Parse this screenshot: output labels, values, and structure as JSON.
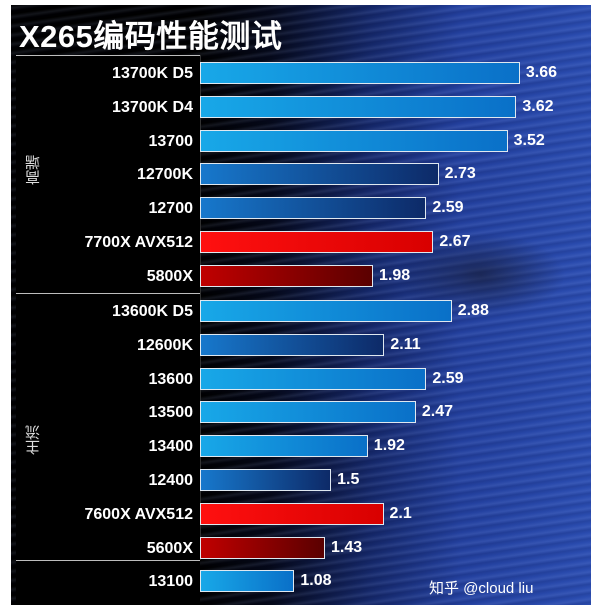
{
  "chart_data": {
    "type": "bar",
    "orientation": "horizontal",
    "title": "X265编码性能测试",
    "xlabel": "",
    "ylabel": "",
    "groups": [
      {
        "name": "高端",
        "categories": [
          "13700K D5",
          "13700K D4",
          "13700",
          "12700K",
          "12700",
          "7700X AVX512",
          "5800X"
        ],
        "values": [
          3.66,
          3.62,
          3.52,
          2.73,
          2.59,
          2.67,
          1.98
        ]
      },
      {
        "name": "主流",
        "categories": [
          "13600K D5",
          "12600K",
          "13600",
          "13500",
          "13400",
          "12400",
          "7600X AVX512",
          "5600X",
          "13100"
        ],
        "values": [
          2.88,
          2.11,
          2.59,
          2.47,
          1.92,
          1.5,
          2.1,
          1.43,
          1.08
        ]
      }
    ],
    "categories": [
      "13700K D5",
      "13700K D4",
      "13700",
      "12700K",
      "12700",
      "7700X AVX512",
      "5800X",
      "13600K D5",
      "12600K",
      "13600",
      "13500",
      "13400",
      "12400",
      "7600X AVX512",
      "5600X",
      "13100"
    ],
    "values": [
      3.66,
      3.62,
      3.52,
      2.73,
      2.59,
      2.67,
      1.98,
      2.88,
      2.11,
      2.59,
      2.47,
      1.92,
      1.5,
      2.1,
      1.43,
      1.08
    ],
    "value_labels": [
      "3.66",
      "3.62",
      "3.52",
      "2.73",
      "2.59",
      "2.67",
      "1.98",
      "2.88",
      "2.11",
      "2.59",
      "2.47",
      "1.92",
      "1.5",
      "2.1",
      "1.43",
      "1.08"
    ],
    "bar_colors": [
      "blue",
      "blue",
      "blue",
      "dblue",
      "dblue",
      "red",
      "dred",
      "blue",
      "dblue",
      "blue",
      "blue",
      "blue",
      "dblue",
      "red",
      "dred",
      "blue"
    ],
    "color_legend": {
      "blue": "#18a8e8",
      "dblue": "#0d2a68",
      "red": "#ff1010",
      "dred": "#7a0000"
    },
    "grid": false,
    "legend": "none"
  },
  "title": "X265编码性能测试",
  "groups": {
    "high": "高端",
    "main": "主流"
  },
  "watermark": "知乎 @cloud liu"
}
